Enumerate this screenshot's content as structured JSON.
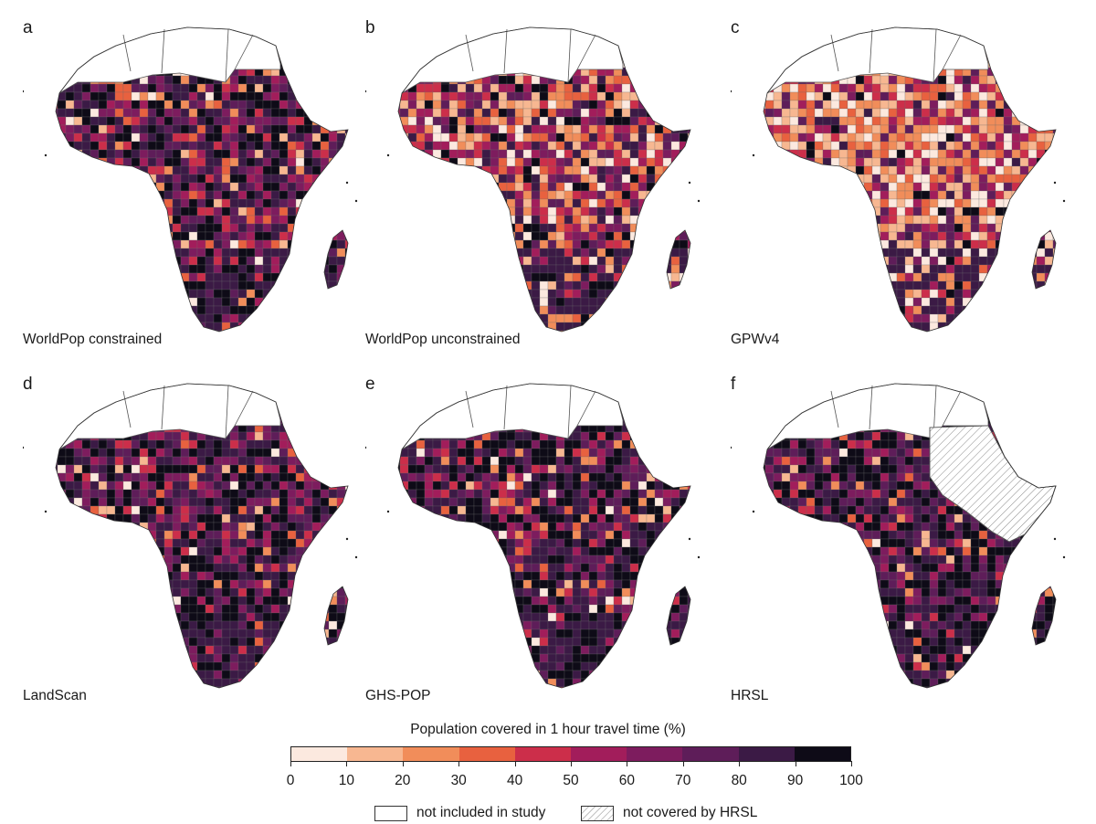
{
  "panels": [
    {
      "letter": "a",
      "label": "WorldPop constrained",
      "palette_weights": [
        0.03,
        0.04,
        0.05,
        0.05,
        0.07,
        0.08,
        0.1,
        0.14,
        0.2,
        0.24
      ],
      "hrsl_gap": false
    },
    {
      "letter": "b",
      "label": "WorldPop unconstrained",
      "palette_weights": [
        0.08,
        0.1,
        0.12,
        0.1,
        0.1,
        0.1,
        0.1,
        0.1,
        0.1,
        0.1
      ],
      "hrsl_gap": false
    },
    {
      "letter": "c",
      "label": "GPWv4",
      "palette_weights": [
        0.16,
        0.16,
        0.14,
        0.1,
        0.1,
        0.09,
        0.08,
        0.07,
        0.05,
        0.05
      ],
      "hrsl_gap": false
    },
    {
      "letter": "d",
      "label": "LandScan",
      "palette_weights": [
        0.02,
        0.03,
        0.03,
        0.04,
        0.06,
        0.08,
        0.12,
        0.16,
        0.2,
        0.26
      ],
      "hrsl_gap": false
    },
    {
      "letter": "e",
      "label": "GHS-POP",
      "palette_weights": [
        0.02,
        0.02,
        0.03,
        0.04,
        0.06,
        0.07,
        0.1,
        0.14,
        0.22,
        0.3
      ],
      "hrsl_gap": false
    },
    {
      "letter": "f",
      "label": "HRSL",
      "palette_weights": [
        0.01,
        0.02,
        0.02,
        0.03,
        0.05,
        0.07,
        0.1,
        0.15,
        0.23,
        0.32
      ],
      "hrsl_gap": true
    }
  ],
  "legend": {
    "title": "Population covered in 1 hour travel time (%)",
    "ticks": [
      "0",
      "10",
      "20",
      "30",
      "40",
      "50",
      "60",
      "70",
      "80",
      "90",
      "100"
    ],
    "bins": [
      "#fce9df",
      "#f7b791",
      "#f18d5a",
      "#e8613f",
      "#cc2e4a",
      "#a21d5b",
      "#7d1c5e",
      "#5e1d59",
      "#3b1a45",
      "#0e0b17"
    ],
    "excluded_label": "not included in study",
    "hatched_label": "not covered by HRSL"
  }
}
